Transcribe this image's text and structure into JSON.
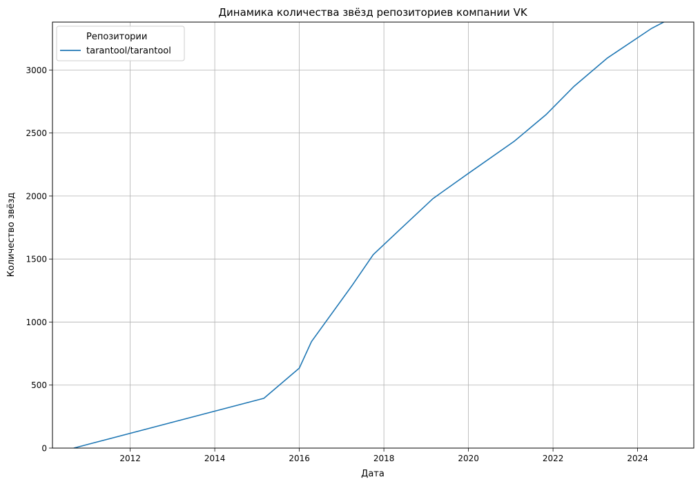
{
  "chart_data": {
    "type": "line",
    "title": "Динамика количества звёзд репозиториев компании VK",
    "xlabel": "Дата",
    "ylabel": "Количество звёзд",
    "xlim": [
      "2010-03-01",
      "2025-05-01"
    ],
    "ylim": [
      0,
      3380
    ],
    "x_ticks": [
      "2012",
      "2014",
      "2016",
      "2018",
      "2020",
      "2022",
      "2024"
    ],
    "y_ticks": [
      0,
      500,
      1000,
      1500,
      2000,
      2500,
      3000
    ],
    "grid": true,
    "legend": {
      "title": "Репозитории",
      "placement": "top-left"
    },
    "series": [
      {
        "name": "tarantool/tarantool",
        "color": "#1f77b4",
        "points": [
          {
            "x": "2010-09-01",
            "y": 0
          },
          {
            "x": "2015-03-01",
            "y": 395
          },
          {
            "x": "2016-01-01",
            "y": 635
          },
          {
            "x": "2016-04-15",
            "y": 845
          },
          {
            "x": "2017-04-01",
            "y": 1290
          },
          {
            "x": "2017-10-01",
            "y": 1535
          },
          {
            "x": "2018-06-01",
            "y": 1745
          },
          {
            "x": "2019-03-01",
            "y": 1980
          },
          {
            "x": "2020-01-01",
            "y": 2180
          },
          {
            "x": "2021-02-01",
            "y": 2435
          },
          {
            "x": "2021-11-01",
            "y": 2645
          },
          {
            "x": "2022-07-01",
            "y": 2870
          },
          {
            "x": "2023-04-15",
            "y": 3095
          },
          {
            "x": "2024-05-01",
            "y": 3330
          },
          {
            "x": "2024-09-15",
            "y": 3395
          }
        ]
      }
    ]
  }
}
